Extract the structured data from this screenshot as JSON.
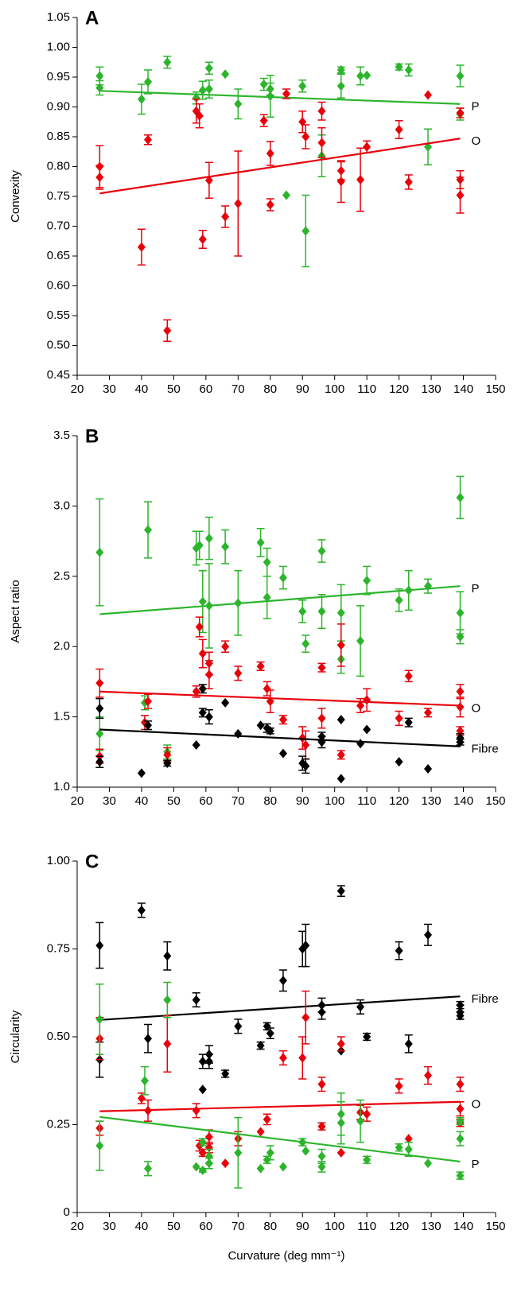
{
  "chart_data": [
    {
      "type": "scatter",
      "panel_label": "A",
      "ylabel": "Convexity",
      "xlim": [
        20,
        150
      ],
      "xticks": [
        20,
        30,
        40,
        50,
        60,
        70,
        80,
        90,
        100,
        110,
        120,
        130,
        140,
        150
      ],
      "ylim": [
        0.45,
        1.05
      ],
      "yticks": [
        0.45,
        {
          "value": 0.5,
          "label": "0.50"
        },
        0.55,
        {
          "value": 0.6,
          "label": "0.60"
        },
        0.65,
        {
          "value": 0.7,
          "label": "0.70"
        },
        0.75,
        {
          "value": 0.8,
          "label": "0.80"
        },
        0.85,
        {
          "value": 0.9,
          "label": "0.90"
        },
        0.95,
        {
          "value": 1.0,
          "label": "1.00"
        },
        1.05
      ],
      "series": [
        {
          "name": "P",
          "color": "#2cb52c",
          "x": [
            27,
            27,
            40,
            42,
            48,
            57,
            59,
            61,
            61,
            66,
            70,
            78,
            80,
            80,
            85,
            90,
            91,
            96,
            102,
            102,
            108,
            110,
            120,
            123,
            129,
            139,
            139
          ],
          "values": [
            0.952,
            0.932,
            0.913,
            0.942,
            0.975,
            0.915,
            0.928,
            0.93,
            0.965,
            0.955,
            0.905,
            0.938,
            0.918,
            0.93,
            0.752,
            0.935,
            0.692,
            0.818,
            0.962,
            0.935,
            0.952,
            0.953,
            0.967,
            0.962,
            0.833,
            0.952,
            0.888
          ],
          "errors": [
            0.015,
            0.012,
            0.025,
            0.02,
            0.01,
            0.01,
            0.015,
            0.015,
            0.01,
            null,
            0.025,
            0.01,
            0.035,
            0.01,
            null,
            0.01,
            0.06,
            0.035,
            0.005,
            0.02,
            0.015,
            null,
            0.005,
            0.01,
            0.03,
            0.018,
            0.01
          ],
          "fit_x": [
            27,
            139
          ],
          "fit_values": [
            0.927,
            0.905
          ]
        },
        {
          "name": "O",
          "color": "#e8000b",
          "x": [
            27,
            27,
            40,
            42,
            48,
            57,
            58,
            59,
            61,
            66,
            70,
            78,
            80,
            80,
            85,
            90,
            91,
            96,
            96,
            102,
            102,
            108,
            110,
            120,
            123,
            129,
            139,
            139,
            139
          ],
          "values": [
            0.8,
            0.782,
            0.665,
            0.845,
            0.525,
            0.893,
            0.885,
            0.678,
            0.777,
            0.716,
            0.738,
            0.877,
            0.822,
            0.736,
            0.922,
            0.875,
            0.85,
            0.84,
            0.893,
            0.793,
            0.775,
            0.778,
            0.833,
            0.862,
            0.774,
            0.92,
            0.778,
            0.752,
            0.89
          ],
          "errors": [
            0.035,
            0.02,
            0.03,
            0.008,
            0.018,
            0.02,
            0.02,
            0.015,
            0.03,
            0.018,
            0.088,
            0.01,
            0.02,
            0.01,
            0.008,
            0.018,
            0.02,
            0.025,
            0.015,
            0.015,
            0.035,
            0.053,
            0.01,
            0.015,
            0.012,
            null,
            0.015,
            0.03,
            0.008
          ],
          "fit_x": [
            27,
            139
          ],
          "fit_values": [
            0.755,
            0.847
          ]
        }
      ]
    },
    {
      "type": "scatter",
      "panel_label": "B",
      "ylabel": "Aspect ratio",
      "xlim": [
        20,
        150
      ],
      "xticks": [
        20,
        30,
        40,
        50,
        60,
        70,
        80,
        90,
        100,
        110,
        120,
        130,
        140,
        150
      ],
      "ylim": [
        1.0,
        3.5
      ],
      "yticks": [
        {
          "value": 1.0,
          "label": "1.0"
        },
        1.5,
        {
          "value": 2.0,
          "label": "2.0"
        },
        2.5,
        {
          "value": 3.0,
          "label": "3.0"
        },
        3.5
      ],
      "series": [
        {
          "name": "P",
          "color": "#2cb52c",
          "x": [
            27,
            27,
            41,
            42,
            48,
            57,
            58,
            59,
            61,
            61,
            66,
            70,
            77,
            79,
            79,
            84,
            90,
            91,
            96,
            96,
            102,
            102,
            108,
            110,
            120,
            123,
            129,
            139,
            139,
            139
          ],
          "values": [
            2.67,
            1.38,
            1.6,
            2.83,
            1.25,
            2.7,
            2.72,
            2.32,
            2.77,
            2.29,
            2.71,
            2.31,
            2.74,
            2.6,
            2.35,
            2.49,
            2.25,
            2.02,
            2.68,
            2.25,
            2.24,
            1.91,
            2.04,
            2.47,
            2.33,
            2.4,
            2.43,
            3.06,
            2.24,
            2.07
          ],
          "errors": [
            0.38,
            0.12,
            0.05,
            0.2,
            0.05,
            0.12,
            0.1,
            0.22,
            0.15,
            0.3,
            0.12,
            0.23,
            0.1,
            0.1,
            0.15,
            0.08,
            0.08,
            0.06,
            0.08,
            0.12,
            0.2,
            0.1,
            0.25,
            0.1,
            0.08,
            0.14,
            0.05,
            0.15,
            0.15,
            0.05
          ],
          "fit_x": [
            27,
            139
          ],
          "fit_values": [
            2.23,
            2.43
          ]
        },
        {
          "name": "O",
          "color": "#e8000b",
          "x": [
            27,
            27,
            41,
            42,
            48,
            57,
            58,
            59,
            61,
            61,
            66,
            70,
            77,
            79,
            80,
            84,
            90,
            91,
            96,
            96,
            102,
            102,
            108,
            110,
            120,
            123,
            129,
            139,
            139,
            139
          ],
          "values": [
            1.74,
            1.22,
            1.46,
            1.61,
            1.23,
            1.68,
            2.14,
            1.95,
            1.88,
            1.8,
            2.0,
            1.81,
            1.86,
            1.7,
            1.61,
            1.48,
            1.35,
            1.3,
            1.49,
            1.85,
            2.01,
            1.23,
            1.58,
            1.62,
            1.49,
            1.79,
            1.53,
            1.68,
            1.57,
            1.4
          ],
          "errors": [
            0.1,
            0.05,
            0.05,
            0.05,
            0.05,
            0.04,
            0.07,
            0.1,
            0.08,
            0.1,
            0.04,
            0.05,
            0.03,
            0.05,
            0.08,
            0.03,
            0.08,
            0.1,
            0.07,
            0.03,
            0.15,
            0.03,
            0.05,
            0.08,
            0.05,
            0.04,
            0.03,
            0.05,
            0.07,
            0.03
          ],
          "fit_x": [
            27,
            139
          ],
          "fit_values": [
            1.68,
            1.58
          ]
        },
        {
          "name": "Fibre",
          "color": "#000000",
          "x": [
            27,
            27,
            40,
            42,
            48,
            57,
            59,
            59,
            61,
            66,
            70,
            77,
            79,
            80,
            84,
            90,
            91,
            96,
            96,
            102,
            102,
            108,
            110,
            120,
            123,
            129,
            139,
            139
          ],
          "values": [
            1.56,
            1.18,
            1.1,
            1.44,
            1.17,
            1.3,
            1.53,
            1.7,
            1.5,
            1.6,
            1.38,
            1.44,
            1.42,
            1.4,
            1.24,
            1.17,
            1.15,
            1.36,
            1.32,
            1.48,
            1.06,
            1.31,
            1.41,
            1.18,
            1.46,
            1.13,
            1.35,
            1.32
          ],
          "errors": [
            0.07,
            0.04,
            null,
            0.03,
            0.02,
            null,
            0.03,
            0.03,
            0.05,
            null,
            null,
            null,
            0.03,
            0.02,
            null,
            0.05,
            0.05,
            0.03,
            0.04,
            null,
            null,
            null,
            null,
            null,
            0.03,
            null,
            0.03,
            0.02
          ],
          "fit_x": [
            27,
            139
          ],
          "fit_values": [
            1.41,
            1.29
          ]
        }
      ]
    },
    {
      "type": "scatter",
      "panel_label": "C",
      "ylabel": "Circularity",
      "xlabel": "Curvature (deg mm⁻¹)",
      "xlim": [
        20,
        150
      ],
      "xticks": [
        20,
        30,
        40,
        50,
        60,
        70,
        80,
        90,
        100,
        110,
        120,
        130,
        140,
        150
      ],
      "ylim": [
        0,
        1.0
      ],
      "yticks": [
        0,
        0.25,
        {
          "value": 0.5,
          "label": "0.50"
        },
        0.75,
        {
          "value": 1.0,
          "label": "1.00"
        }
      ],
      "series": [
        {
          "name": "Fibre",
          "color": "#000000",
          "x": [
            27,
            27,
            40,
            42,
            48,
            57,
            59,
            59,
            61,
            61,
            66,
            70,
            77,
            79,
            80,
            84,
            90,
            91,
            96,
            96,
            102,
            102,
            108,
            110,
            120,
            123,
            129,
            139,
            139,
            139
          ],
          "values": [
            0.76,
            0.435,
            0.86,
            0.495,
            0.73,
            0.605,
            0.43,
            0.35,
            0.45,
            0.43,
            0.395,
            0.53,
            0.475,
            0.53,
            0.51,
            0.66,
            0.75,
            0.76,
            0.59,
            0.57,
            0.915,
            0.46,
            0.585,
            0.5,
            0.745,
            0.48,
            0.79,
            0.59,
            0.57,
            0.56
          ],
          "errors": [
            0.065,
            0.05,
            0.02,
            0.04,
            0.04,
            0.02,
            0.02,
            null,
            0.025,
            0.02,
            0.01,
            0.02,
            0.01,
            0.01,
            0.015,
            0.03,
            0.05,
            0.06,
            0.02,
            0.02,
            0.015,
            null,
            0.02,
            0.01,
            0.025,
            0.025,
            0.03,
            0.01,
            0.02,
            0.01
          ],
          "fit_x": [
            27,
            139
          ],
          "fit_values": [
            0.548,
            0.615
          ]
        },
        {
          "name": "O",
          "color": "#e8000b",
          "x": [
            27,
            27,
            40,
            42,
            48,
            57,
            58,
            59,
            61,
            61,
            66,
            70,
            77,
            79,
            84,
            90,
            91,
            96,
            96,
            102,
            102,
            108,
            110,
            120,
            123,
            129,
            139,
            139,
            139
          ],
          "values": [
            0.495,
            0.24,
            0.325,
            0.29,
            0.48,
            0.29,
            0.19,
            0.17,
            0.215,
            0.185,
            0.14,
            0.21,
            0.23,
            0.265,
            0.44,
            0.44,
            0.555,
            0.365,
            0.245,
            0.48,
            0.17,
            0.285,
            0.28,
            0.36,
            0.21,
            0.39,
            0.365,
            0.295,
            0.255
          ],
          "errors": [
            0.06,
            0.02,
            0.015,
            0.03,
            0.08,
            0.02,
            0.015,
            0.01,
            0.02,
            0.015,
            null,
            0.02,
            null,
            0.015,
            0.02,
            0.06,
            0.075,
            0.02,
            0.01,
            0.02,
            null,
            0.02,
            0.02,
            0.02,
            null,
            0.025,
            0.02,
            0.02,
            0.01
          ],
          "fit_x": [
            27,
            139
          ],
          "fit_values": [
            0.288,
            0.315
          ]
        },
        {
          "name": "P",
          "color": "#2cb52c",
          "x": [
            27,
            27,
            41,
            42,
            48,
            57,
            59,
            59,
            61,
            61,
            70,
            77,
            79,
            80,
            84,
            90,
            91,
            96,
            96,
            102,
            102,
            108,
            110,
            120,
            123,
            129,
            139,
            139,
            139
          ],
          "values": [
            0.55,
            0.19,
            0.375,
            0.125,
            0.605,
            0.13,
            0.12,
            0.2,
            0.14,
            0.16,
            0.17,
            0.125,
            0.15,
            0.17,
            0.13,
            0.2,
            0.175,
            0.16,
            0.13,
            0.28,
            0.255,
            0.26,
            0.15,
            0.185,
            0.18,
            0.14,
            0.26,
            0.21,
            0.105
          ],
          "errors": [
            0.1,
            0.07,
            0.04,
            0.02,
            0.05,
            null,
            0.005,
            0.01,
            0.015,
            0.02,
            0.1,
            null,
            0.01,
            0.02,
            null,
            0.01,
            null,
            0.02,
            0.015,
            0.06,
            0.06,
            0.06,
            0.01,
            0.01,
            0.02,
            null,
            0.01,
            0.02,
            0.01
          ],
          "fit_x": [
            27,
            139
          ],
          "fit_values": [
            0.272,
            0.145
          ]
        }
      ]
    }
  ]
}
